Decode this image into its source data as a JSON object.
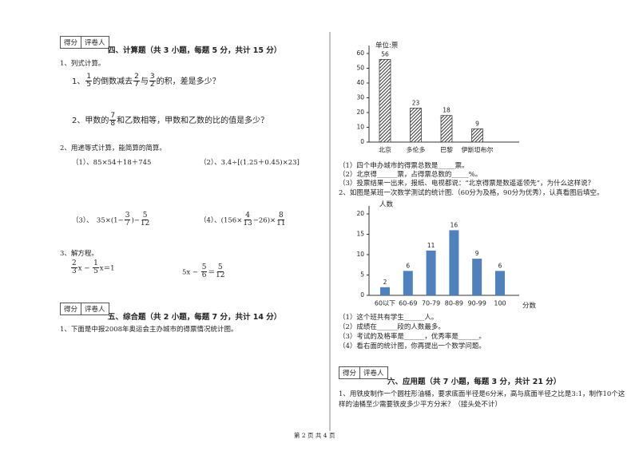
{
  "score_boxes": [
    [
      "得分",
      "评卷人"
    ],
    [
      "得分",
      "评卷人"
    ],
    [
      "得分",
      "评卷人"
    ]
  ],
  "section4": {
    "title": "四、计算题（共 3 小题，每题 5 分，共计 15 分）",
    "q1": "1、列式计算。",
    "q1a": [
      "1、",
      {
        "n": "1",
        "d": "5"
      },
      "的倒数减去",
      {
        "n": "2",
        "d": "7"
      },
      "与",
      {
        "n": "3",
        "d": "2"
      },
      "的积，差是多少？"
    ],
    "q1b": [
      "2、甲数的",
      {
        "n": "7",
        "d": "8"
      },
      "和乙数相等，甲数和乙数的比的值是多少？"
    ],
    "q2": "2、用递等式计算，能简算的简算。",
    "q2a": "（1）、85×54＋18＋745",
    "q2b": "（2）、3.4÷[(1.25＋0.45)×23]",
    "q2c": [
      "（3）、　35×(1−",
      {
        "n": "3",
        "d": "7"
      },
      ")−",
      {
        "n": "5",
        "d": "12"
      }
    ],
    "q2d": [
      "（4）、(156×",
      {
        "n": "4",
        "d": "13"
      },
      "−26)×",
      {
        "n": "8",
        "d": "11"
      }
    ],
    "q3": "3、解方程。",
    "q3a": [
      {
        "n": "2",
        "d": "3"
      },
      "x − ",
      {
        "n": "1",
        "d": "5"
      },
      "x＝1"
    ],
    "q3b": [
      "5x − ",
      {
        "n": "5",
        "d": "6"
      },
      "＝",
      {
        "n": "5",
        "d": "12"
      }
    ]
  },
  "section5": {
    "title": "五、综合题（共 2 小题，每题 7 分，共计 14 分）",
    "q1": "1、下面是中报2008年奥运会主办城市的得票情况统计图。",
    "q1_items": [
      "（1）四个申办城市的得票总数是_____票。",
      "（2）北京得______票，占得票总数的_____%。",
      "（3）投票结果一出来，报纸、电视都说：“北京得票是数遥遥领先”，为什么这样说？"
    ],
    "q2": "2、如图是某班一次数学测试的统计图.（60分为及格，90分为优秀），认真看图后填空。",
    "q2_items": [
      "（1）这个班共有学生______人。",
      "（2）成绩在______段的人数最多。",
      "（3）考试的及格率是______，优秀率是______。",
      "（4）看右面的统计图，你再提出一个数学问题。"
    ]
  },
  "section6": {
    "title": "六、应用题（共 7 小题，每题 3 分，共计 21 分）",
    "q1": "1、用铁皮制作一个圆柱形油桶，要求底面半径是6分米，高与底面半径之比是3:1，制作10个这样的油桶至少需要铁皮多少平方分米？（接头处不计）"
  },
  "charts": [
    {
      "type": "bar",
      "ylabel": "单位:票",
      "categories": [
        "北京",
        "多伦多",
        "巴黎",
        "伊斯坦布尔"
      ],
      "values": [
        56,
        23,
        18,
        9
      ],
      "color": "#444",
      "hatch": true,
      "ylim": [
        0,
        60
      ],
      "yticks": [
        0,
        10,
        20,
        30,
        40,
        50,
        60
      ]
    },
    {
      "type": "bar",
      "ylabel": "人数",
      "xlabel": "分数",
      "categories": [
        "60以下",
        "60-69",
        "70-79",
        "80-89",
        "90-99",
        "100"
      ],
      "values": [
        2,
        6,
        11,
        16,
        9,
        6
      ],
      "color": "#4f81bd",
      "hatch": false,
      "ylim": [
        0,
        20
      ],
      "yticks": [
        0,
        5,
        10,
        15,
        20
      ]
    }
  ],
  "footer": "第 2 页 共 4 页"
}
